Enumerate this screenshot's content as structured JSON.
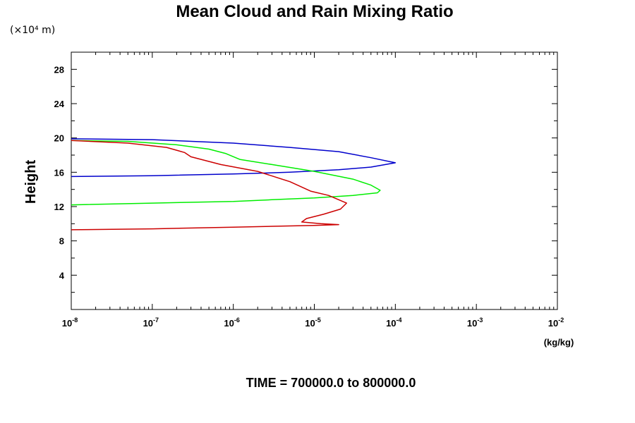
{
  "chart_data": {
    "type": "line",
    "title": "Mean Cloud and Rain Mixing Ratio",
    "ylabel": "Height",
    "y_scale_label": "(×10⁴ m)",
    "x_units_label": "(kg/kg)",
    "footer": "TIME = 700000.0 to 800000.0",
    "x_scale": "log",
    "xlim": [
      1e-08,
      0.01
    ],
    "ylim": [
      0,
      30
    ],
    "x_major_ticks": [
      {
        "base": "10",
        "exp": "-8"
      },
      {
        "base": "10",
        "exp": "-7"
      },
      {
        "base": "10",
        "exp": "-6"
      },
      {
        "base": "10",
        "exp": "-5"
      },
      {
        "base": "10",
        "exp": "-4"
      },
      {
        "base": "10",
        "exp": "-3"
      },
      {
        "base": "10",
        "exp": "-2"
      }
    ],
    "y_ticks": [
      "4",
      "8",
      "12",
      "16",
      "20",
      "24",
      "28"
    ],
    "grid": false,
    "series": [
      {
        "color": "#0000cc",
        "x": [
          1e-08,
          1e-07,
          1e-06,
          5e-06,
          2e-05,
          5e-05,
          0.0001,
          5e-05,
          2e-05,
          5e-06,
          1e-06,
          1e-07,
          1e-08
        ],
        "y": [
          19.9,
          19.8,
          19.4,
          18.9,
          18.4,
          17.7,
          17.1,
          16.6,
          16.3,
          16.0,
          15.8,
          15.6,
          15.5
        ]
      },
      {
        "color": "#00ee00",
        "x": [
          1e-08,
          5e-08,
          2e-07,
          5e-07,
          8e-07,
          1.2e-06,
          3e-06,
          1e-05,
          3e-05,
          5e-05,
          6.5e-05,
          6e-05,
          3e-05,
          1e-05,
          3e-06,
          1e-06,
          1e-07,
          1e-08
        ],
        "y": [
          19.7,
          19.6,
          19.2,
          18.7,
          18.2,
          17.5,
          16.9,
          16.1,
          15.2,
          14.5,
          13.9,
          13.6,
          13.3,
          13.0,
          12.8,
          12.6,
          12.4,
          12.2
        ]
      },
      {
        "color": "#cc0000",
        "x": [
          1e-08,
          5e-08,
          1.5e-07,
          2.5e-07,
          3e-07,
          7e-07,
          2e-06,
          5e-06,
          9e-06,
          1.5e-05,
          2.5e-05,
          2.1e-05,
          1.3e-05,
          8e-06,
          7e-06,
          1.2e-05,
          2e-05,
          1e-05,
          3e-06,
          1e-06,
          1e-07,
          1e-08
        ],
        "y": [
          19.7,
          19.4,
          18.9,
          18.3,
          17.8,
          16.9,
          16.1,
          14.9,
          13.8,
          13.3,
          12.4,
          11.7,
          11.1,
          10.6,
          10.2,
          10.0,
          9.9,
          9.8,
          9.7,
          9.6,
          9.4,
          9.3
        ]
      }
    ]
  }
}
